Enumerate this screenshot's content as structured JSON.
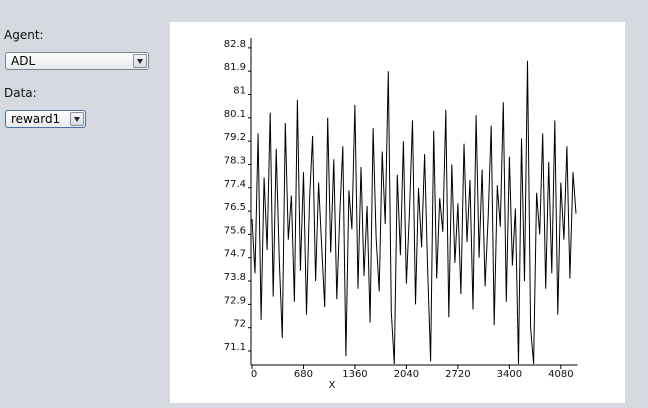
{
  "controls": {
    "agent_label": "Agent:",
    "agent_value": "ADL",
    "data_label": "Data:",
    "data_value": "reward1"
  },
  "chart_data": {
    "type": "line",
    "x_label": "X",
    "x": [
      0,
      40,
      80,
      120,
      160,
      200,
      240,
      280,
      320,
      360,
      400,
      440,
      480,
      520,
      560,
      600,
      640,
      680,
      720,
      760,
      800,
      840,
      880,
      920,
      960,
      1000,
      1040,
      1080,
      1120,
      1160,
      1200,
      1240,
      1280,
      1320,
      1360,
      1400,
      1440,
      1480,
      1520,
      1560,
      1600,
      1640,
      1680,
      1720,
      1760,
      1800,
      1840,
      1880,
      1920,
      1960,
      2000,
      2040,
      2080,
      2120,
      2160,
      2200,
      2240,
      2280,
      2320,
      2360,
      2400,
      2440,
      2480,
      2520,
      2560,
      2600,
      2640,
      2680,
      2720,
      2760,
      2800,
      2840,
      2880,
      2920,
      2960,
      3000,
      3040,
      3080,
      3120,
      3160,
      3200,
      3240,
      3280,
      3320,
      3360,
      3400,
      3440,
      3480,
      3520,
      3560,
      3600,
      3640,
      3680,
      3720,
      3760,
      3800,
      3840,
      3880,
      3920,
      3960,
      4000,
      4040,
      4080,
      4120,
      4160,
      4200,
      4240,
      4280
    ],
    "series": [
      {
        "color": "#000000",
        "values": [
          76.2,
          74.1,
          79.5,
          72.3,
          77.8,
          75.0,
          80.3,
          73.2,
          78.9,
          74.6,
          71.6,
          79.9,
          75.4,
          77.1,
          73.0,
          80.8,
          74.2,
          78.0,
          72.5,
          76.9,
          79.4,
          73.8,
          77.6,
          75.2,
          72.8,
          80.1,
          74.9,
          78.5,
          73.1,
          76.4,
          79.0,
          70.9,
          77.3,
          75.8,
          80.6,
          73.5,
          78.2,
          74.0,
          76.7,
          72.2,
          79.7,
          75.5,
          73.4,
          78.8,
          76.0,
          81.9,
          72.6,
          70.6,
          77.9,
          74.8,
          79.2,
          73.7,
          76.5,
          80.0,
          72.9,
          77.4,
          75.1,
          78.7,
          74.3,
          70.7,
          79.6,
          73.9,
          77.0,
          75.7,
          80.4,
          72.4,
          78.3,
          74.5,
          76.8,
          73.3,
          79.1,
          75.3,
          77.7,
          72.7,
          80.2,
          74.7,
          78.1,
          73.6,
          76.3,
          79.8,
          72.1,
          77.5,
          75.9,
          80.7,
          73.0,
          78.6,
          74.4,
          76.6,
          70.6,
          79.3,
          73.8,
          82.3,
          72.0,
          70.6,
          77.2,
          75.6,
          79.5,
          73.5,
          78.4,
          74.1,
          80.0,
          72.5,
          77.6,
          75.4,
          79.0,
          73.9,
          78.0,
          76.4
        ]
      }
    ],
    "xlim": [
      0,
      4300
    ],
    "ylim": [
      70.56,
      83.18
    ],
    "xticks": [
      0,
      680,
      1360,
      2040,
      2720,
      3400,
      4080
    ],
    "yticks": [
      71.1,
      72,
      72.9,
      73.8,
      74.7,
      75.6,
      76.5,
      77.4,
      78.3,
      79.2,
      80.1,
      81,
      81.9,
      82.8
    ]
  }
}
